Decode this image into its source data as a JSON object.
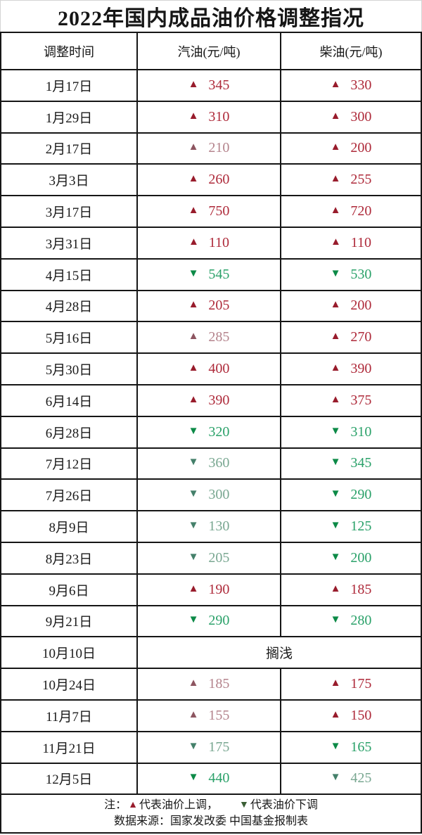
{
  "chart_data": {
    "type": "table",
    "title": "2022年国内成品油价格调整指况",
    "columns": [
      "调整时间",
      "汽油(元/吨)",
      "柴油(元/吨)"
    ],
    "rows": [
      {
        "date": "1月17日",
        "gasoline": {
          "dir": "up",
          "value": "345",
          "variant": "bright"
        },
        "diesel": {
          "dir": "up",
          "value": "330",
          "variant": "bright"
        }
      },
      {
        "date": "1月29日",
        "gasoline": {
          "dir": "up",
          "value": "310",
          "variant": "bright"
        },
        "diesel": {
          "dir": "up",
          "value": "300",
          "variant": "bright"
        }
      },
      {
        "date": "2月17日",
        "gasoline": {
          "dir": "up",
          "value": "210",
          "variant": "muted"
        },
        "diesel": {
          "dir": "up",
          "value": "200",
          "variant": "bright"
        }
      },
      {
        "date": "3月3日",
        "gasoline": {
          "dir": "up",
          "value": "260",
          "variant": "bright"
        },
        "diesel": {
          "dir": "up",
          "value": "255",
          "variant": "bright"
        }
      },
      {
        "date": "3月17日",
        "gasoline": {
          "dir": "up",
          "value": "750",
          "variant": "bright"
        },
        "diesel": {
          "dir": "up",
          "value": "720",
          "variant": "bright"
        }
      },
      {
        "date": "3月31日",
        "gasoline": {
          "dir": "up",
          "value": "110",
          "variant": "bright"
        },
        "diesel": {
          "dir": "up",
          "value": "110",
          "variant": "bright"
        }
      },
      {
        "date": "4月15日",
        "gasoline": {
          "dir": "down",
          "value": "545",
          "variant": "bright"
        },
        "diesel": {
          "dir": "down",
          "value": "530",
          "variant": "bright"
        }
      },
      {
        "date": "4月28日",
        "gasoline": {
          "dir": "up",
          "value": "205",
          "variant": "bright"
        },
        "diesel": {
          "dir": "up",
          "value": "200",
          "variant": "bright"
        }
      },
      {
        "date": "5月16日",
        "gasoline": {
          "dir": "up",
          "value": "285",
          "variant": "muted"
        },
        "diesel": {
          "dir": "up",
          "value": "270",
          "variant": "bright"
        }
      },
      {
        "date": "5月30日",
        "gasoline": {
          "dir": "up",
          "value": "400",
          "variant": "bright"
        },
        "diesel": {
          "dir": "up",
          "value": "390",
          "variant": "bright"
        }
      },
      {
        "date": "6月14日",
        "gasoline": {
          "dir": "up",
          "value": "390",
          "variant": "bright"
        },
        "diesel": {
          "dir": "up",
          "value": "375",
          "variant": "bright"
        }
      },
      {
        "date": "6月28日",
        "gasoline": {
          "dir": "down",
          "value": "320",
          "variant": "bright"
        },
        "diesel": {
          "dir": "down",
          "value": "310",
          "variant": "bright"
        }
      },
      {
        "date": "7月12日",
        "gasoline": {
          "dir": "down",
          "value": "360",
          "variant": "muted"
        },
        "diesel": {
          "dir": "down",
          "value": "345",
          "variant": "bright"
        }
      },
      {
        "date": "7月26日",
        "gasoline": {
          "dir": "down",
          "value": "300",
          "variant": "muted"
        },
        "diesel": {
          "dir": "down",
          "value": "290",
          "variant": "bright"
        }
      },
      {
        "date": "8月9日",
        "gasoline": {
          "dir": "down",
          "value": "130",
          "variant": "muted"
        },
        "diesel": {
          "dir": "down",
          "value": "125",
          "variant": "bright"
        }
      },
      {
        "date": "8月23日",
        "gasoline": {
          "dir": "down",
          "value": "205",
          "variant": "muted"
        },
        "diesel": {
          "dir": "down",
          "value": "200",
          "variant": "bright"
        }
      },
      {
        "date": "9月6日",
        "gasoline": {
          "dir": "up",
          "value": "190",
          "variant": "bright"
        },
        "diesel": {
          "dir": "up",
          "value": "185",
          "variant": "bright"
        }
      },
      {
        "date": "9月21日",
        "gasoline": {
          "dir": "down",
          "value": "290",
          "variant": "bright"
        },
        "diesel": {
          "dir": "down",
          "value": "280",
          "variant": "bright"
        }
      },
      {
        "date": "10月10日",
        "merged": "搁浅"
      },
      {
        "date": "10月24日",
        "gasoline": {
          "dir": "up",
          "value": "185",
          "variant": "muted"
        },
        "diesel": {
          "dir": "up",
          "value": "175",
          "variant": "bright"
        }
      },
      {
        "date": "11月7日",
        "gasoline": {
          "dir": "up",
          "value": "155",
          "variant": "muted"
        },
        "diesel": {
          "dir": "up",
          "value": "150",
          "variant": "bright"
        }
      },
      {
        "date": "11月21日",
        "gasoline": {
          "dir": "down",
          "value": "175",
          "variant": "muted"
        },
        "diesel": {
          "dir": "down",
          "value": "165",
          "variant": "bright"
        }
      },
      {
        "date": "12月5日",
        "gasoline": {
          "dir": "down",
          "value": "440",
          "variant": "bright"
        },
        "diesel": {
          "dir": "down",
          "value": "425",
          "variant": "muted"
        }
      }
    ],
    "notes": {
      "legend": "注：▲代表油价上调，▼代表油价下调",
      "source": "数据来源：国家发改委 中国基金报制表"
    }
  },
  "icons": {
    "up": "▲",
    "down": "▼"
  },
  "colors": {
    "up-tri": "#981c2c",
    "up-num": "#ae2a3a",
    "up-tri-muted": "#8d5560",
    "up-num-muted": "#b4838c",
    "down-tri": "#0c8a47",
    "down-num": "#2aa169",
    "down-tri-muted": "#44806a",
    "down-num-muted": "#79a791",
    "legend-down": "#3a5f35"
  },
  "footer": {
    "note_label": "注：",
    "up_text": "代表油价上调，",
    "down_text": "代表油价下调",
    "source": "数据来源：国家发改委 中国基金报制表"
  }
}
